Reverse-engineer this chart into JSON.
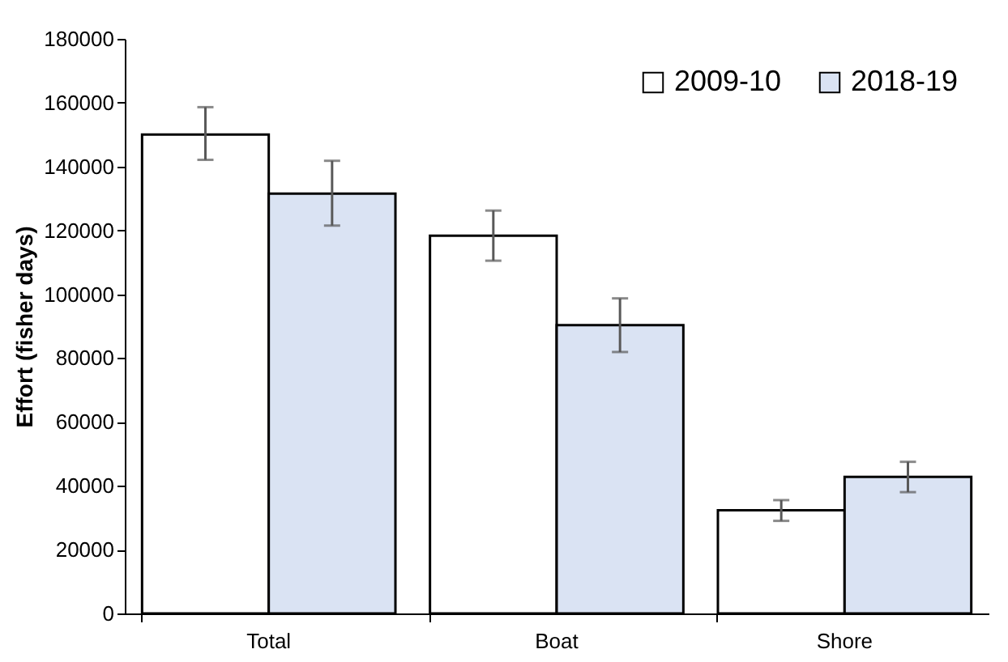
{
  "chart_data": {
    "type": "bar",
    "ylabel": "Effort (fisher days)",
    "categories": [
      "Total",
      "Boat",
      "Shore"
    ],
    "series": [
      {
        "name": "2009-10",
        "color": "#ffffff",
        "values": [
          150000,
          118300,
          32300
        ],
        "errors": [
          [
            142100,
            158600
          ],
          [
            110500,
            126200
          ],
          [
            29000,
            35500
          ]
        ]
      },
      {
        "name": "2018-19",
        "color": "#dae3f3",
        "values": [
          131500,
          90300,
          42800
        ],
        "errors": [
          [
            121500,
            141800
          ],
          [
            81900,
            98700
          ],
          [
            38000,
            47500
          ]
        ]
      }
    ],
    "ylim": [
      0,
      180000
    ],
    "yticks": [
      0,
      20000,
      40000,
      60000,
      80000,
      100000,
      120000,
      140000,
      160000,
      180000
    ],
    "grid": false,
    "legend": "top right"
  }
}
